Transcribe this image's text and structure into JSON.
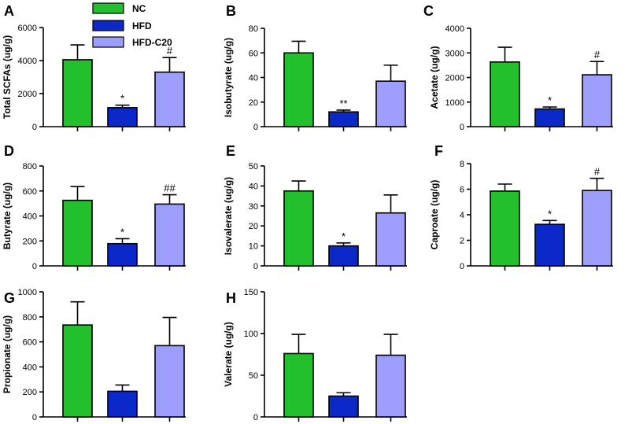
{
  "legend": {
    "entries": [
      {
        "name": "NC",
        "color": "#22c02c"
      },
      {
        "name": "HFD",
        "color": "#0b28c8"
      },
      {
        "name": "HFD-C20",
        "color": "#9d9dfb"
      }
    ]
  },
  "chart_data": [
    {
      "type": "bar",
      "panel": "A",
      "ylabel": "Total SCFAs (ug/g)",
      "ylim": [
        0,
        6000
      ],
      "yticks": [
        0,
        2000,
        4000,
        6000
      ],
      "categories": [
        "NC",
        "HFD",
        "HFD-C20"
      ],
      "values": [
        4050,
        1150,
        3300
      ],
      "errors": [
        900,
        150,
        880
      ],
      "annotations": [
        "",
        "*",
        "#"
      ]
    },
    {
      "type": "bar",
      "panel": "B",
      "ylabel": "Isobutyrate (ug/g)",
      "ylim": [
        0,
        80
      ],
      "yticks": [
        0,
        20,
        40,
        60,
        80
      ],
      "categories": [
        "NC",
        "HFD",
        "HFD-C20"
      ],
      "values": [
        60,
        12,
        37
      ],
      "errors": [
        9.5,
        1.5,
        13
      ],
      "annotations": [
        "",
        "**",
        ""
      ]
    },
    {
      "type": "bar",
      "panel": "C",
      "ylabel": "Acetate (ug/g)",
      "ylim": [
        0,
        4000
      ],
      "yticks": [
        0,
        1000,
        2000,
        3000,
        4000
      ],
      "categories": [
        "NC",
        "HFD",
        "HFD-C20"
      ],
      "values": [
        2630,
        720,
        2110
      ],
      "errors": [
        600,
        80,
        540
      ],
      "annotations": [
        "",
        "*",
        "#"
      ]
    },
    {
      "type": "bar",
      "panel": "D",
      "ylabel": "Butyrate (ug/g)",
      "ylim": [
        0,
        800
      ],
      "yticks": [
        0,
        200,
        400,
        600,
        800
      ],
      "categories": [
        "NC",
        "HFD",
        "HFD-C20"
      ],
      "values": [
        525,
        178,
        495
      ],
      "errors": [
        110,
        40,
        75
      ],
      "annotations": [
        "",
        "*",
        "##"
      ]
    },
    {
      "type": "bar",
      "panel": "E",
      "ylabel": "Isovalerate (ug/g)",
      "ylim": [
        0,
        50
      ],
      "yticks": [
        0,
        10,
        20,
        30,
        40,
        50
      ],
      "categories": [
        "NC",
        "HFD",
        "HFD-C20"
      ],
      "values": [
        37.5,
        10,
        26.5
      ],
      "errors": [
        5,
        1.5,
        9
      ],
      "annotations": [
        "",
        "*",
        ""
      ]
    },
    {
      "type": "bar",
      "panel": "F",
      "ylabel": "Caproate (ug/g)",
      "ylim": [
        0,
        8
      ],
      "yticks": [
        0,
        2,
        4,
        6,
        8
      ],
      "categories": [
        "NC",
        "HFD",
        "HFD-C20"
      ],
      "values": [
        5.85,
        3.25,
        5.9
      ],
      "errors": [
        0.55,
        0.3,
        0.95
      ],
      "annotations": [
        "",
        "*",
        "#"
      ]
    },
    {
      "type": "bar",
      "panel": "G",
      "ylabel": "Propionate (ug/g)",
      "ylim": [
        0,
        1000
      ],
      "yticks": [
        0,
        200,
        400,
        600,
        800,
        1000
      ],
      "categories": [
        "NC",
        "HFD",
        "HFD-C20"
      ],
      "values": [
        735,
        205,
        570
      ],
      "errors": [
        185,
        50,
        225
      ],
      "annotations": [
        "",
        "",
        ""
      ]
    },
    {
      "type": "bar",
      "panel": "H",
      "ylabel": "Valerate (ug/g)",
      "ylim": [
        0,
        150
      ],
      "yticks": [
        0,
        50,
        100,
        150
      ],
      "categories": [
        "NC",
        "HFD",
        "HFD-C20"
      ],
      "values": [
        76,
        25,
        74
      ],
      "errors": [
        23,
        4,
        25
      ],
      "annotations": [
        "",
        "",
        ""
      ]
    }
  ]
}
